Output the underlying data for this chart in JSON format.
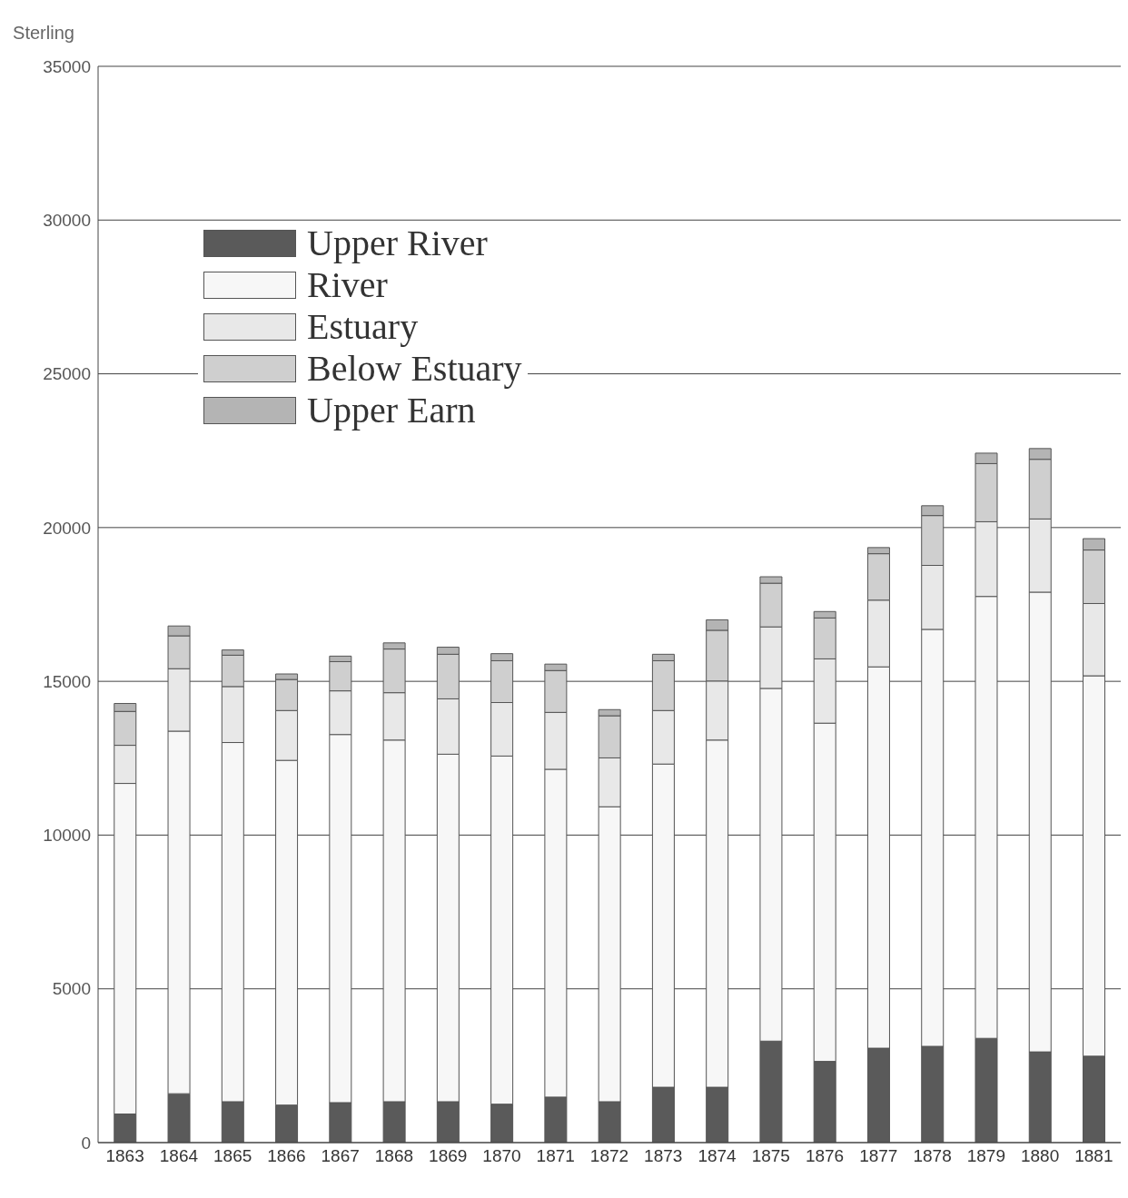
{
  "chart_data": {
    "type": "bar",
    "stacked": true,
    "ylabel": "Sterling",
    "categories": [
      "1863",
      "1864",
      "1865",
      "1866",
      "1867",
      "1868",
      "1869",
      "1870",
      "1871",
      "1872",
      "1873",
      "1874",
      "1875",
      "1876",
      "1877",
      "1878",
      "1879",
      "1880",
      "1881"
    ],
    "series": [
      {
        "name": "Upper River",
        "color": "#5a5a5a",
        "values": [
          930,
          1590,
          1330,
          1220,
          1300,
          1330,
          1330,
          1250,
          1480,
          1330,
          1800,
          1800,
          3300,
          2640,
          3070,
          3130,
          3390,
          2950,
          2810
        ]
      },
      {
        "name": "River",
        "color": "#f7f7f7",
        "values": [
          10750,
          11790,
          11680,
          11210,
          11970,
          11760,
          11300,
          11320,
          10660,
          9590,
          10510,
          11290,
          11470,
          11000,
          12400,
          13560,
          14370,
          14950,
          12370
        ]
      },
      {
        "name": "Estuary",
        "color": "#e8e8e8",
        "values": [
          1240,
          2030,
          1820,
          1620,
          1420,
          1540,
          1800,
          1740,
          1850,
          1590,
          1740,
          1920,
          2000,
          2090,
          2170,
          2080,
          2430,
          2380,
          2350
        ]
      },
      {
        "name": "Below Estuary",
        "color": "#cfcfcf",
        "values": [
          1100,
          1070,
          1020,
          1010,
          950,
          1420,
          1450,
          1360,
          1360,
          1370,
          1620,
          1650,
          1420,
          1330,
          1510,
          1620,
          1890,
          1940,
          1740
        ]
      },
      {
        "name": "Upper Earn",
        "color": "#b4b4b4",
        "values": [
          260,
          320,
          170,
          180,
          180,
          200,
          230,
          230,
          210,
          200,
          210,
          340,
          210,
          210,
          200,
          320,
          340,
          350,
          370
        ]
      }
    ],
    "ylim": [
      0,
      35000
    ],
    "yticks": [
      0,
      5000,
      10000,
      15000,
      20000,
      25000,
      30000,
      35000
    ],
    "grid": "y",
    "legend": "top left"
  }
}
